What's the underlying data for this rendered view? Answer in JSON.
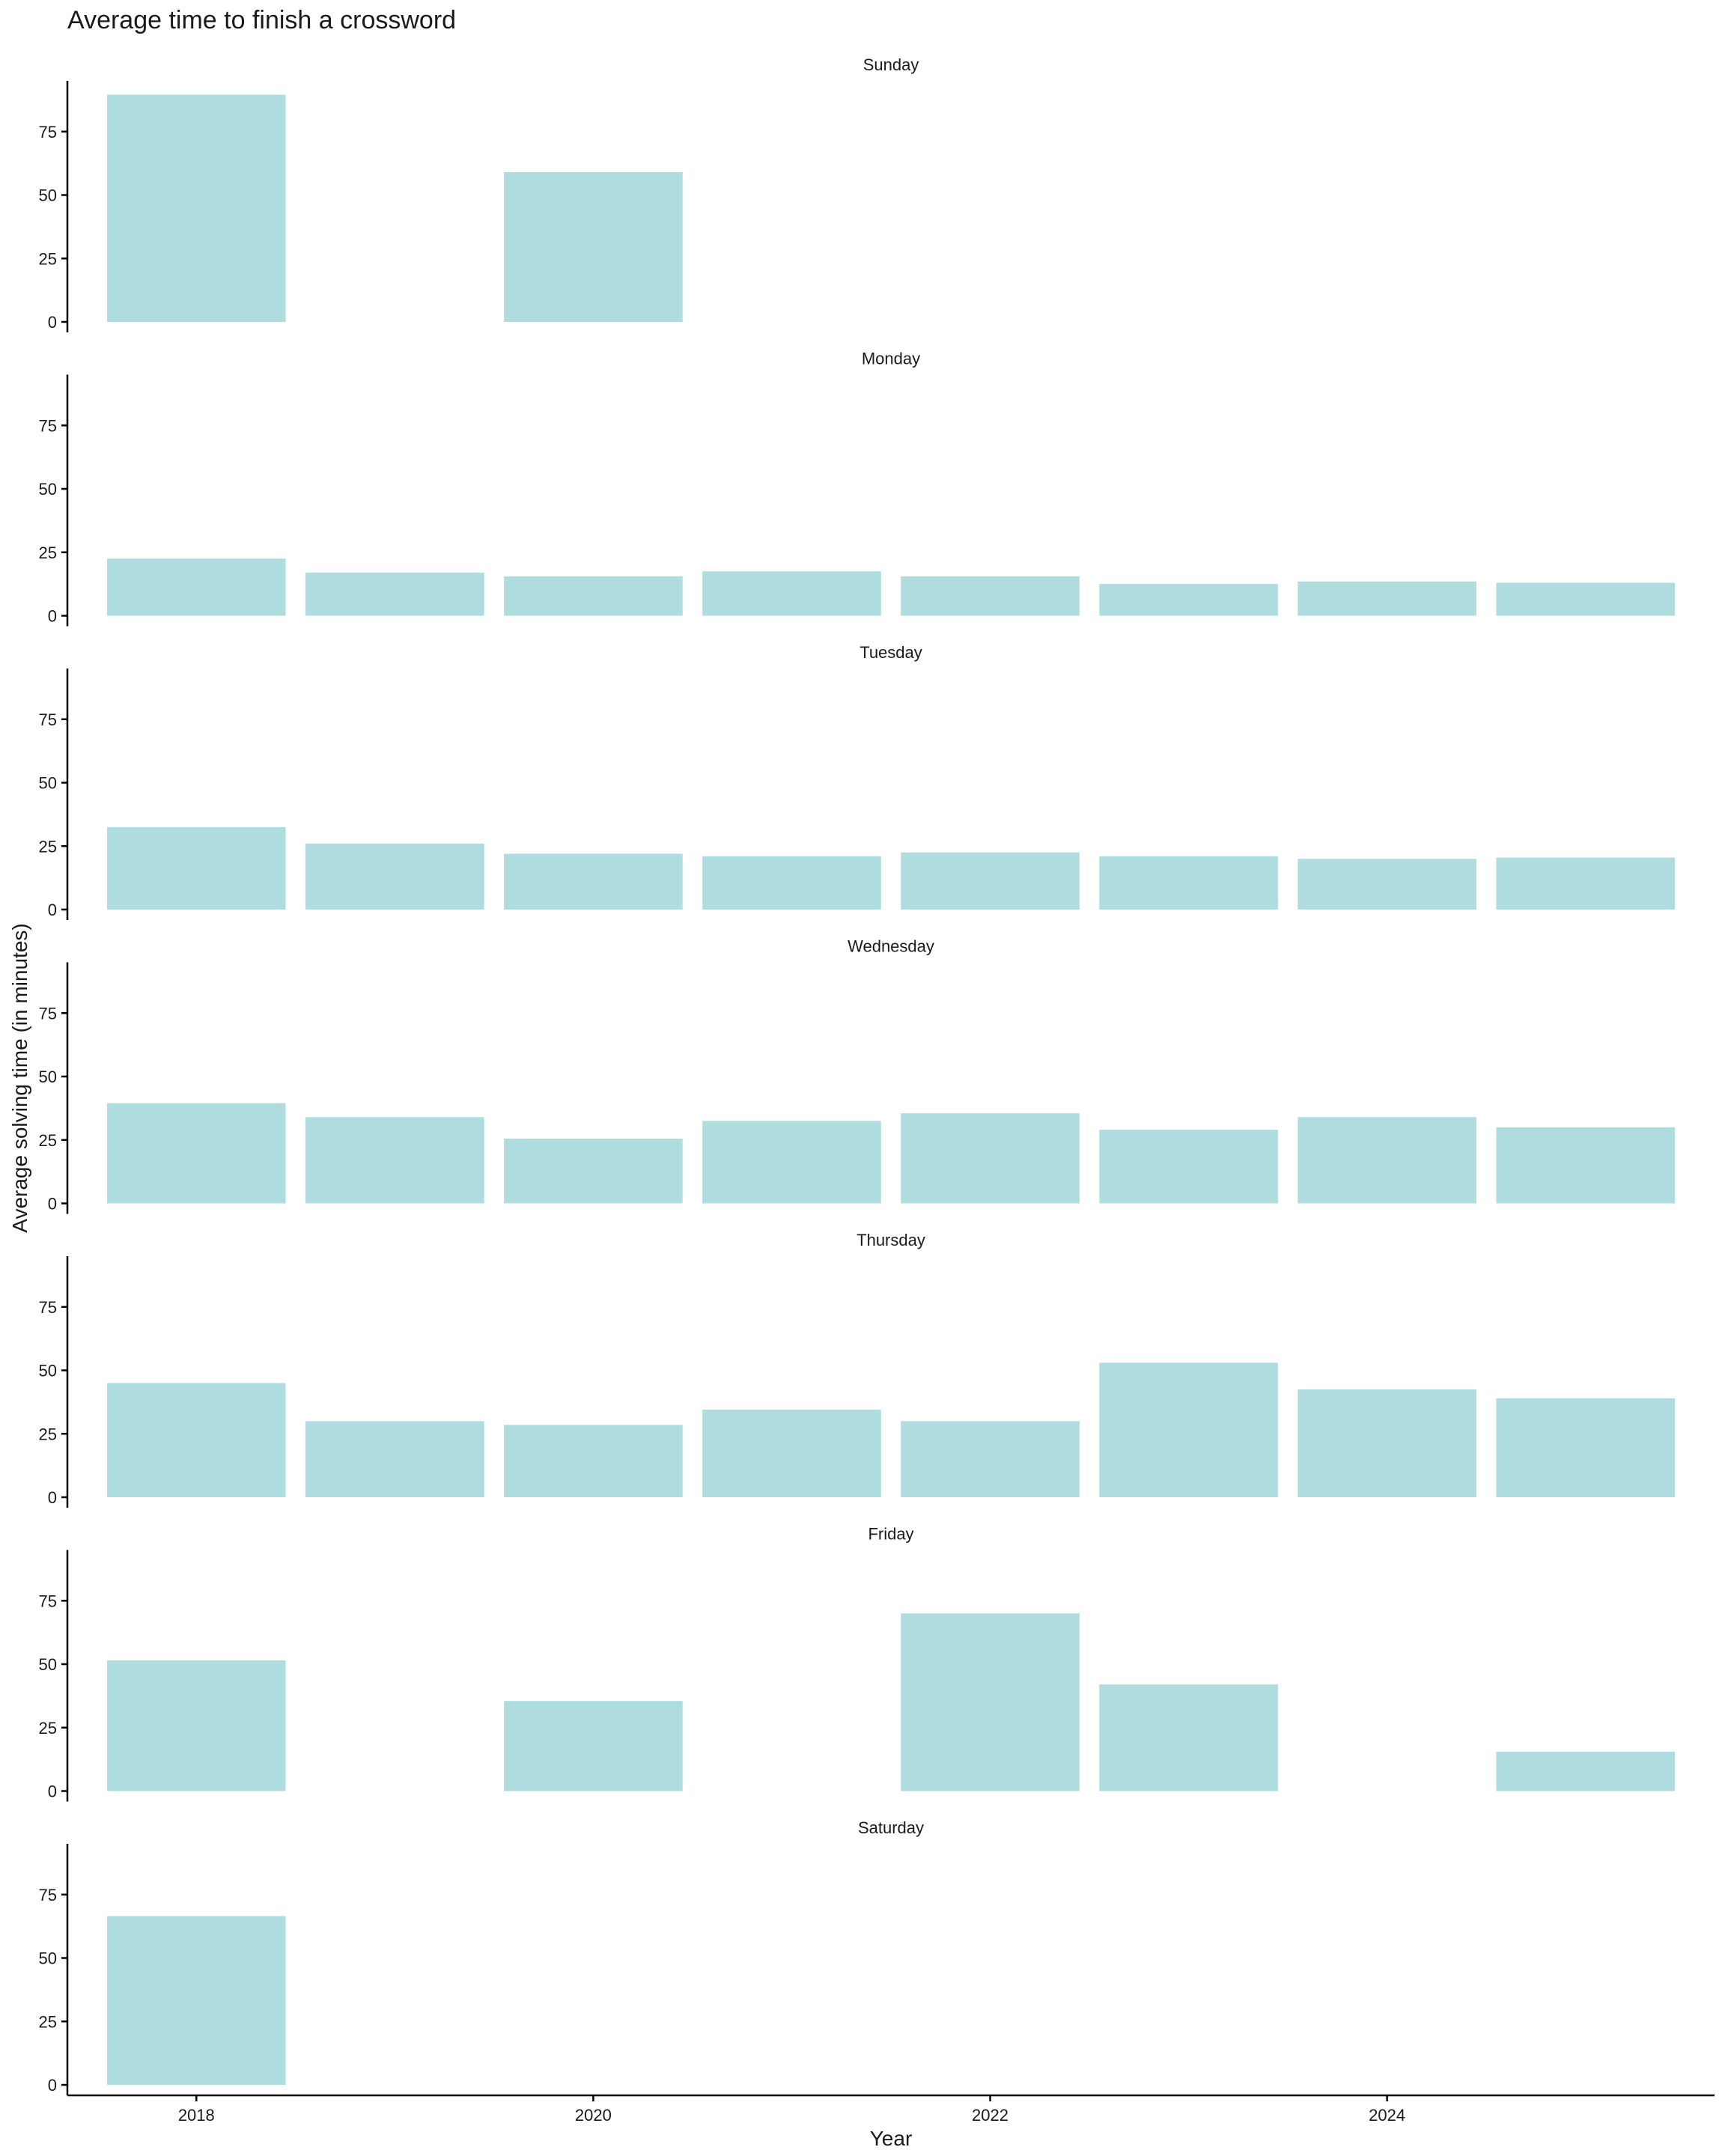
{
  "chart_data": {
    "type": "bar",
    "title": "Average time to finish a crossword",
    "xlabel": "Year",
    "ylabel": "Average solving time (in minutes)",
    "ylim": [
      0,
      95
    ],
    "y_ticks": [
      0,
      25,
      50,
      75
    ],
    "xlim": [
      2017.35,
      2025.65
    ],
    "x_ticks": [
      2018,
      2020,
      2022,
      2024
    ],
    "bar_color": "#aedcdf",
    "grid": false,
    "legend": "none",
    "facets": [
      {
        "name": "Sunday",
        "bars": [
          {
            "x": 2018,
            "y": 89.5
          },
          {
            "x": 2020,
            "y": 59
          }
        ]
      },
      {
        "name": "Monday",
        "bars": [
          {
            "x": 2018,
            "y": 22.5
          },
          {
            "x": 2019,
            "y": 17
          },
          {
            "x": 2020,
            "y": 15.5
          },
          {
            "x": 2021,
            "y": 17.5
          },
          {
            "x": 2022,
            "y": 15.5
          },
          {
            "x": 2023,
            "y": 12.5
          },
          {
            "x": 2024,
            "y": 13.5
          },
          {
            "x": 2025,
            "y": 13
          }
        ]
      },
      {
        "name": "Tuesday",
        "bars": [
          {
            "x": 2018,
            "y": 32.5
          },
          {
            "x": 2019,
            "y": 26
          },
          {
            "x": 2020,
            "y": 22
          },
          {
            "x": 2021,
            "y": 21
          },
          {
            "x": 2022,
            "y": 22.5
          },
          {
            "x": 2023,
            "y": 21
          },
          {
            "x": 2024,
            "y": 20
          },
          {
            "x": 2025,
            "y": 20.5
          }
        ]
      },
      {
        "name": "Wednesday",
        "bars": [
          {
            "x": 2018,
            "y": 39.5
          },
          {
            "x": 2019,
            "y": 34
          },
          {
            "x": 2020,
            "y": 25.5
          },
          {
            "x": 2021,
            "y": 32.5
          },
          {
            "x": 2022,
            "y": 35.5
          },
          {
            "x": 2023,
            "y": 29
          },
          {
            "x": 2024,
            "y": 34
          },
          {
            "x": 2025,
            "y": 30
          }
        ]
      },
      {
        "name": "Thursday",
        "bars": [
          {
            "x": 2018,
            "y": 45
          },
          {
            "x": 2019,
            "y": 30
          },
          {
            "x": 2020,
            "y": 28.5
          },
          {
            "x": 2021,
            "y": 34.5
          },
          {
            "x": 2022,
            "y": 30
          },
          {
            "x": 2023,
            "y": 53
          },
          {
            "x": 2024,
            "y": 42.5
          },
          {
            "x": 2025,
            "y": 39
          }
        ]
      },
      {
        "name": "Friday",
        "bars": [
          {
            "x": 2018,
            "y": 51.5
          },
          {
            "x": 2020,
            "y": 35.5
          },
          {
            "x": 2022,
            "y": 70
          },
          {
            "x": 2023,
            "y": 42
          },
          {
            "x": 2025,
            "y": 15.5
          }
        ]
      },
      {
        "name": "Saturday",
        "bars": [
          {
            "x": 2018,
            "y": 66.5
          }
        ]
      }
    ]
  }
}
